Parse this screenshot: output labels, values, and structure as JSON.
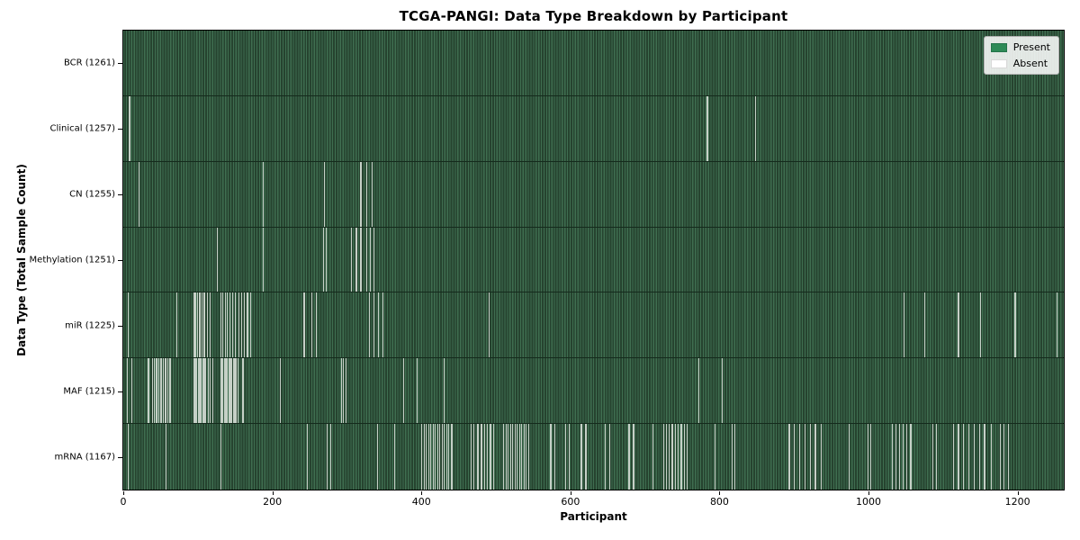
{
  "title": "TCGA-PANGI: Data Type Breakdown by Participant",
  "xlabel": "Participant",
  "ylabel": "Data Type (Total Sample Count)",
  "legend": {
    "present_label": "Present",
    "absent_label": "Absent"
  },
  "colors": {
    "present": "#2e8b57",
    "bar_stripe_light": "#3f6e50",
    "bar_stripe_dark": "#26432f",
    "absent_line": "#c6d0c7",
    "plot_border": "#000000",
    "legend_border": "#b0b0b0"
  },
  "chart_data": {
    "type": "heatmap",
    "title": "TCGA-PANGI: Data Type Breakdown by Participant",
    "xlabel": "Participant",
    "ylabel": "Data Type (Total Sample Count)",
    "legend": [
      "Present",
      "Absent"
    ],
    "legend_position": "upper right",
    "grid": false,
    "x_axis": {
      "ticks": [
        0,
        200,
        400,
        600,
        800,
        1000,
        1200
      ],
      "scale_max": 1262
    },
    "rows": [
      {
        "name": "BCR",
        "label": "BCR (1261)",
        "total": 1261,
        "absent": []
      },
      {
        "name": "Clinical",
        "label": "Clinical (1257)",
        "total": 1257,
        "absent": [
          7,
          8,
          783,
          848
        ]
      },
      {
        "name": "CN",
        "label": "CN (1255)",
        "total": 1255,
        "absent": [
          20,
          187,
          269,
          318,
          326,
          333
        ]
      },
      {
        "name": "Methylation",
        "label": "Methylation (1251)",
        "total": 1251,
        "absent": [
          125,
          187,
          268,
          272,
          305,
          312,
          318,
          326,
          331,
          336
        ]
      },
      {
        "name": "miR",
        "label": "miR (1225)",
        "total": 1225,
        "absent": [
          6,
          71,
          94,
          96,
          99,
          102,
          105,
          108,
          112,
          116,
          130,
          133,
          136,
          139,
          142,
          146,
          150,
          154,
          158,
          162,
          166,
          170,
          242,
          252,
          258,
          330,
          336,
          342,
          348,
          490,
          1047,
          1075,
          1120,
          1150,
          1196,
          1252
        ]
      },
      {
        "name": "MAF",
        "label": "MAF (1215)",
        "total": 1215,
        "absent": [
          5,
          11,
          33,
          39,
          41,
          44,
          47,
          50,
          53,
          56,
          59,
          62,
          94,
          96,
          98,
          100,
          102,
          104,
          106,
          108,
          110,
          113,
          116,
          119,
          131,
          133,
          135,
          137,
          139,
          141,
          143,
          145,
          147,
          149,
          151,
          153,
          160,
          210,
          292,
          295,
          298,
          375,
          394,
          430,
          772,
          803
        ]
      },
      {
        "name": "mRNA",
        "label": "mRNA (1167)",
        "total": 1167,
        "absent": [
          6,
          57,
          130,
          246,
          273,
          278,
          340,
          363,
          400,
          403,
          406,
          409,
          412,
          415,
          418,
          421,
          424,
          427,
          430,
          433,
          436,
          440,
          466,
          470,
          475,
          480,
          484,
          488,
          492,
          496,
          510,
          513,
          516,
          519,
          522,
          525,
          528,
          531,
          534,
          537,
          540,
          543,
          573,
          578,
          593,
          598,
          614,
          620,
          646,
          652,
          678,
          684,
          710,
          724,
          728,
          732,
          736,
          740,
          744,
          748,
          752,
          756,
          793,
          816,
          820,
          893,
          900,
          907,
          914,
          921,
          928,
          936,
          973,
          999,
          1002,
          1031,
          1036,
          1041,
          1046,
          1051,
          1056,
          1086,
          1090,
          1113,
          1120,
          1127,
          1134,
          1141,
          1148,
          1155,
          1164,
          1176,
          1181,
          1187
        ]
      }
    ]
  }
}
